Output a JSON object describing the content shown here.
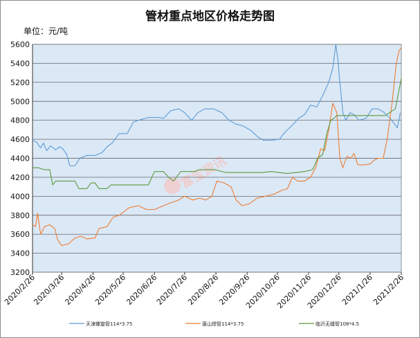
{
  "title": "管材重点地区价格走势图",
  "unit": "单位：元/吨",
  "watermark": "富宝资讯",
  "colors": {
    "plot_bg": "#dbe8f6",
    "grid": "#4f4f4f",
    "series": [
      "#5b9bd5",
      "#ed7d31",
      "#5a9a3b"
    ]
  },
  "chart_data": {
    "type": "line",
    "x_axis_type": "date",
    "x_ticks": [
      "2020/2/26",
      "2020/3/26",
      "2020/4/26",
      "2020/5/26",
      "2020/6/26",
      "2020/7/26",
      "2020/8/26",
      "2020/9/26",
      "2020/10/26",
      "2020/11/26",
      "2020/12/26",
      "2021/1/26",
      "2021/2/26"
    ],
    "xlim": [
      "2020/2/26",
      "2021/2/26"
    ],
    "ylim": [
      3200,
      5600
    ],
    "y_ticks": [
      3200,
      3400,
      3600,
      3800,
      4000,
      4200,
      4400,
      4600,
      4800,
      5000,
      5200,
      5400,
      5600
    ],
    "grid": true,
    "legend_position": "bottom",
    "series": [
      {
        "name": "天津螺旋管114*3.75",
        "points": [
          [
            "2020/2/26",
            4590
          ],
          [
            "2020/3/1",
            4570
          ],
          [
            "2020/3/5",
            4510
          ],
          [
            "2020/3/8",
            4560
          ],
          [
            "2020/3/11",
            4480
          ],
          [
            "2020/3/15",
            4530
          ],
          [
            "2020/3/20",
            4490
          ],
          [
            "2020/3/24",
            4520
          ],
          [
            "2020/3/27",
            4500
          ],
          [
            "2020/3/31",
            4440
          ],
          [
            "2020/4/3",
            4320
          ],
          [
            "2020/4/8",
            4320
          ],
          [
            "2020/4/13",
            4400
          ],
          [
            "2020/4/20",
            4430
          ],
          [
            "2020/4/28",
            4430
          ],
          [
            "2020/5/5",
            4460
          ],
          [
            "2020/5/10",
            4520
          ],
          [
            "2020/5/15",
            4560
          ],
          [
            "2020/5/22",
            4660
          ],
          [
            "2020/5/30",
            4660
          ],
          [
            "2020/6/5",
            4780
          ],
          [
            "2020/6/10",
            4800
          ],
          [
            "2020/6/20",
            4830
          ],
          [
            "2020/6/30",
            4830
          ],
          [
            "2020/7/5",
            4820
          ],
          [
            "2020/7/12",
            4900
          ],
          [
            "2020/7/20",
            4920
          ],
          [
            "2020/7/26",
            4880
          ],
          [
            "2020/8/2",
            4800
          ],
          [
            "2020/8/8",
            4880
          ],
          [
            "2020/8/15",
            4920
          ],
          [
            "2020/8/24",
            4920
          ],
          [
            "2020/9/1",
            4880
          ],
          [
            "2020/9/8",
            4800
          ],
          [
            "2020/9/15",
            4760
          ],
          [
            "2020/9/22",
            4740
          ],
          [
            "2020/9/30",
            4690
          ],
          [
            "2020/10/6",
            4630
          ],
          [
            "2020/10/12",
            4590
          ],
          [
            "2020/10/20",
            4590
          ],
          [
            "2020/10/28",
            4600
          ],
          [
            "2020/11/3",
            4680
          ],
          [
            "2020/11/10",
            4750
          ],
          [
            "2020/11/16",
            4820
          ],
          [
            "2020/11/22",
            4860
          ],
          [
            "2020/11/28",
            4960
          ],
          [
            "2020/12/4",
            4940
          ],
          [
            "2020/12/10",
            5060
          ],
          [
            "2020/12/16",
            5200
          ],
          [
            "2020/12/20",
            5350
          ],
          [
            "2020/12/23",
            5600
          ],
          [
            "2020/12/25",
            5440
          ],
          [
            "2020/12/27",
            5200
          ],
          [
            "2020/12/30",
            4880
          ],
          [
            "2021/1/2",
            4800
          ],
          [
            "2021/1/6",
            4880
          ],
          [
            "2021/1/10",
            4860
          ],
          [
            "2021/1/15",
            4800
          ],
          [
            "2021/1/22",
            4820
          ],
          [
            "2021/1/28",
            4920
          ],
          [
            "2021/2/3",
            4920
          ],
          [
            "2021/2/8",
            4890
          ],
          [
            "2021/2/15",
            4820
          ],
          [
            "2021/2/22",
            4720
          ],
          [
            "2021/2/25",
            4880
          ]
        ]
      },
      {
        "name": "唐山焊管114*3.75",
        "points": [
          [
            "2020/2/26",
            3700
          ],
          [
            "2020/2/29",
            3680
          ],
          [
            "2020/3/2",
            3820
          ],
          [
            "2020/3/5",
            3600
          ],
          [
            "2020/3/9",
            3680
          ],
          [
            "2020/3/14",
            3700
          ],
          [
            "2020/3/19",
            3660
          ],
          [
            "2020/3/22",
            3540
          ],
          [
            "2020/3/26",
            3480
          ],
          [
            "2020/4/2",
            3500
          ],
          [
            "2020/4/8",
            3560
          ],
          [
            "2020/4/14",
            3580
          ],
          [
            "2020/4/20",
            3550
          ],
          [
            "2020/4/28",
            3560
          ],
          [
            "2020/5/2",
            3660
          ],
          [
            "2020/5/10",
            3680
          ],
          [
            "2020/5/16",
            3780
          ],
          [
            "2020/5/22",
            3800
          ],
          [
            "2020/6/1",
            3880
          ],
          [
            "2020/6/10",
            3900
          ],
          [
            "2020/6/18",
            3860
          ],
          [
            "2020/6/26",
            3860
          ],
          [
            "2020/7/5",
            3900
          ],
          [
            "2020/7/12",
            3930
          ],
          [
            "2020/7/20",
            3960
          ],
          [
            "2020/7/26",
            4000
          ],
          [
            "2020/8/3",
            3960
          ],
          [
            "2020/8/10",
            3980
          ],
          [
            "2020/8/16",
            3960
          ],
          [
            "2020/8/22",
            4000
          ],
          [
            "2020/8/27",
            4160
          ],
          [
            "2020/9/3",
            4140
          ],
          [
            "2020/9/10",
            4100
          ],
          [
            "2020/9/15",
            3960
          ],
          [
            "2020/9/21",
            3900
          ],
          [
            "2020/9/28",
            3920
          ],
          [
            "2020/10/6",
            3980
          ],
          [
            "2020/10/14",
            4000
          ],
          [
            "2020/10/22",
            4020
          ],
          [
            "2020/10/30",
            4060
          ],
          [
            "2020/11/5",
            4080
          ],
          [
            "2020/11/10",
            4200
          ],
          [
            "2020/11/15",
            4160
          ],
          [
            "2020/11/22",
            4160
          ],
          [
            "2020/11/28",
            4200
          ],
          [
            "2020/12/3",
            4300
          ],
          [
            "2020/12/8",
            4500
          ],
          [
            "2020/12/12",
            4480
          ],
          [
            "2020/12/16",
            4700
          ],
          [
            "2020/12/20",
            4980
          ],
          [
            "2020/12/24",
            4880
          ],
          [
            "2020/12/27",
            4400
          ],
          [
            "2020/12/30",
            4300
          ],
          [
            "2021/1/3",
            4420
          ],
          [
            "2021/1/7",
            4400
          ],
          [
            "2021/1/10",
            4450
          ],
          [
            "2021/1/14",
            4330
          ],
          [
            "2021/1/20",
            4330
          ],
          [
            "2021/1/26",
            4340
          ],
          [
            "2021/1/30",
            4380
          ],
          [
            "2021/2/3",
            4400
          ],
          [
            "2021/2/8",
            4400
          ],
          [
            "2021/2/12",
            4600
          ],
          [
            "2021/2/17",
            5000
          ],
          [
            "2021/2/21",
            5400
          ],
          [
            "2021/2/24",
            5540
          ],
          [
            "2021/2/26",
            5560
          ]
        ]
      },
      {
        "name": "临沂无缝管108*4.5",
        "points": [
          [
            "2020/2/26",
            4300
          ],
          [
            "2020/3/3",
            4300
          ],
          [
            "2020/3/8",
            4280
          ],
          [
            "2020/3/14",
            4280
          ],
          [
            "2020/3/17",
            4120
          ],
          [
            "2020/3/20",
            4160
          ],
          [
            "2020/3/28",
            4160
          ],
          [
            "2020/4/8",
            4160
          ],
          [
            "2020/4/12",
            4080
          ],
          [
            "2020/4/20",
            4080
          ],
          [
            "2020/4/24",
            4140
          ],
          [
            "2020/4/28",
            4140
          ],
          [
            "2020/5/2",
            4080
          ],
          [
            "2020/5/10",
            4080
          ],
          [
            "2020/5/14",
            4120
          ],
          [
            "2020/5/28",
            4120
          ],
          [
            "2020/6/10",
            4120
          ],
          [
            "2020/6/20",
            4120
          ],
          [
            "2020/6/26",
            4260
          ],
          [
            "2020/7/5",
            4260
          ],
          [
            "2020/7/10",
            4200
          ],
          [
            "2020/7/15",
            4160
          ],
          [
            "2020/7/22",
            4260
          ],
          [
            "2020/8/5",
            4260
          ],
          [
            "2020/8/10",
            4280
          ],
          [
            "2020/8/25",
            4280
          ],
          [
            "2020/9/5",
            4250
          ],
          [
            "2020/10/10",
            4250
          ],
          [
            "2020/10/20",
            4260
          ],
          [
            "2020/11/5",
            4240
          ],
          [
            "2020/11/22",
            4260
          ],
          [
            "2020/11/30",
            4280
          ],
          [
            "2020/12/5",
            4400
          ],
          [
            "2020/12/10",
            4440
          ],
          [
            "2020/12/14",
            4660
          ],
          [
            "2020/12/18",
            4800
          ],
          [
            "2020/12/21",
            4820
          ],
          [
            "2020/12/24",
            4850
          ],
          [
            "2020/12/28",
            4850
          ],
          [
            "2021/1/10",
            4850
          ],
          [
            "2021/1/25",
            4850
          ],
          [
            "2021/2/10",
            4850
          ],
          [
            "2021/2/20",
            4920
          ],
          [
            "2021/2/26",
            5240
          ]
        ]
      }
    ]
  }
}
